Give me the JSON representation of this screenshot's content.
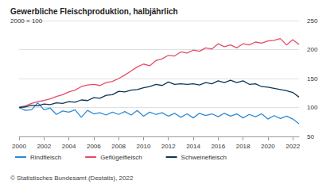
{
  "chart_data": {
    "type": "line",
    "title": "Gewerbliche Fleischproduktion, halbjährlich",
    "subtitle": "2000 = 100",
    "source": "© Statistisches Bundesamt (Destatis), 2022",
    "x": [
      2000,
      2000.5,
      2001,
      2001.5,
      2002,
      2002.5,
      2003,
      2003.5,
      2004,
      2004.5,
      2005,
      2005.5,
      2006,
      2006.5,
      2007,
      2007.5,
      2008,
      2008.5,
      2009,
      2009.5,
      2010,
      2010.5,
      2011,
      2011.5,
      2012,
      2012.5,
      2013,
      2013.5,
      2014,
      2014.5,
      2015,
      2015.5,
      2016,
      2016.5,
      2017,
      2017.5,
      2018,
      2018.5,
      2019,
      2019.5,
      2020,
      2020.5,
      2021,
      2021.5,
      2022,
      2022.5
    ],
    "series": [
      {
        "name": "Rindfleisch",
        "color": "#2e8ad3",
        "values": [
          100,
          95,
          96,
          108,
          96,
          99,
          88,
          94,
          92,
          96,
          83,
          95,
          89,
          91,
          87,
          92,
          88,
          93,
          87,
          95,
          85,
          92,
          88,
          91,
          85,
          90,
          83,
          89,
          82,
          90,
          86,
          89,
          84,
          90,
          85,
          89,
          82,
          88,
          84,
          89,
          80,
          86,
          81,
          85,
          80,
          72
        ]
      },
      {
        "name": "Geflügelfleisch",
        "color": "#e64c67",
        "values": [
          100,
          103,
          107,
          110,
          112,
          115,
          119,
          122,
          127,
          130,
          136,
          139,
          140,
          138,
          143,
          145,
          150,
          156,
          163,
          170,
          175,
          172,
          181,
          184,
          190,
          189,
          196,
          194,
          199,
          197,
          203,
          201,
          210,
          205,
          208,
          203,
          210,
          208,
          213,
          211,
          215,
          216,
          219,
          208,
          217,
          209
        ]
      },
      {
        "name": "Schweinefleisch",
        "color": "#0d3657",
        "values": [
          100,
          101,
          104,
          103,
          106,
          105,
          108,
          107,
          110,
          109,
          113,
          112,
          117,
          116,
          121,
          122,
          128,
          127,
          130,
          131,
          134,
          136,
          140,
          138,
          144,
          140,
          141,
          140,
          141,
          139,
          143,
          141,
          146,
          143,
          147,
          143,
          146,
          140,
          141,
          136,
          135,
          133,
          131,
          129,
          126,
          118
        ]
      }
    ],
    "xlim": [
      2000,
      2022.5
    ],
    "xticks": [
      2000,
      2002,
      2004,
      2006,
      2008,
      2010,
      2012,
      2014,
      2016,
      2018,
      2020,
      2022
    ],
    "ylim": [
      50,
      250
    ],
    "yticks": [
      50,
      100,
      150,
      200,
      250
    ],
    "grid": true,
    "legend": "bottom-left"
  }
}
